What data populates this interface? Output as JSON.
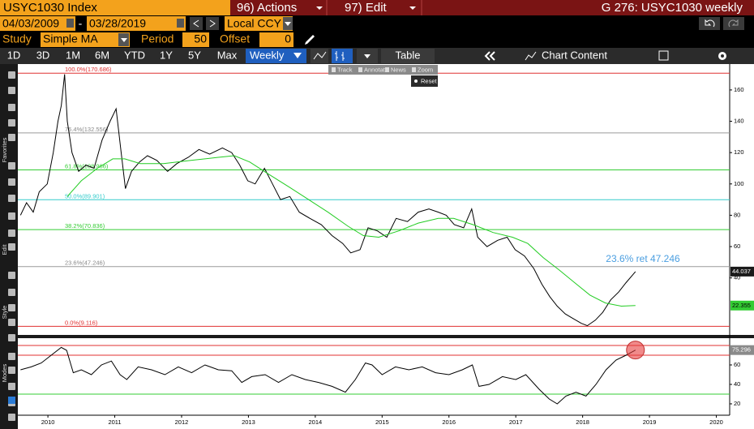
{
  "header": {
    "ticker": "USYC1030 Index",
    "actions": "96) Actions",
    "edit": "97) Edit",
    "title": "G 276: USYC1030 weekly"
  },
  "dates": {
    "start": "04/03/2009",
    "separator": "-",
    "end": "03/28/2019",
    "currency": "Local CCY"
  },
  "study": {
    "label": "Study",
    "name": "Simple MA",
    "period_label": "Period",
    "period": 50,
    "offset_label": "Offset",
    "offset": 0
  },
  "toolbar": {
    "ranges": [
      "1D",
      "3D",
      "1M",
      "6M",
      "YTD",
      "1Y",
      "5Y",
      "Max"
    ],
    "frequency": "Weekly",
    "table": "Table",
    "chart_content": "Chart Content"
  },
  "popup": {
    "items": [
      "Track",
      "Annotate",
      "News",
      "Zoom"
    ],
    "reset": "Reset"
  },
  "sidebar": {
    "favorites": "Favorites",
    "edit": "Edit",
    "style": "Style",
    "modes": "Modes"
  },
  "chart_data": [
    {
      "type": "line",
      "xlim": [
        2009.55,
        2020.2
      ],
      "ylim": [
        3.6,
        176
      ],
      "yticks": [
        40,
        60,
        80,
        100,
        120,
        140,
        160
      ],
      "series": [
        {
          "color": "#000000",
          "x": [
            2009.59,
            2009.68,
            2009.78,
            2009.87,
            2009.99,
            2010.08,
            2010.15,
            2010.2,
            2010.25,
            2010.29,
            2010.36,
            2010.46,
            2010.57,
            2010.69,
            2010.81,
            2010.93,
            2011.02,
            2011.09,
            2011.16,
            2011.25,
            2011.37,
            2011.49,
            2011.63,
            2011.79,
            2011.93,
            2012.1,
            2012.26,
            2012.42,
            2012.61,
            2012.75,
            2012.87,
            2012.99,
            2013.1,
            2013.24,
            2013.36,
            2013.48,
            2013.62,
            2013.76,
            2013.92,
            2014.09,
            2014.25,
            2014.41,
            2014.53,
            2014.67,
            2014.79,
            2014.93,
            2015.07,
            2015.21,
            2015.38,
            2015.54,
            2015.7,
            2015.84,
            2015.96,
            2016.08,
            2016.22,
            2016.34,
            2016.43,
            2016.57,
            2016.73,
            2016.87,
            2016.99,
            2017.13,
            2017.27,
            2017.39,
            2017.51,
            2017.62,
            2017.74,
            2017.86,
            2017.98,
            2018.07,
            2018.19,
            2018.3,
            2018.42,
            2018.54,
            2018.65,
            2018.75,
            2018.79
          ],
          "values": [
            80,
            88,
            82,
            95,
            100,
            120,
            140,
            150,
            170,
            140,
            120,
            108,
            112,
            110,
            128,
            140,
            148,
            122,
            97,
            108,
            114,
            118,
            115,
            108,
            113,
            117,
            122,
            119,
            123,
            120,
            112,
            102,
            100,
            110,
            100,
            90,
            92,
            82,
            78,
            74,
            67,
            62,
            56,
            58,
            72,
            70,
            66,
            78,
            76,
            82,
            84,
            82,
            80,
            74,
            72,
            84,
            66,
            60,
            64,
            66,
            58,
            54,
            46,
            36,
            28,
            22,
            17,
            14,
            11,
            9.5,
            13,
            18,
            26,
            31,
            37,
            42,
            44.037
          ],
          "tag_color": "#1a1a1a"
        },
        {
          "color": "#22cc22",
          "x": [
            2010.29,
            2010.5,
            2010.74,
            2010.97,
            2011.15,
            2011.38,
            2011.73,
            2012.14,
            2012.55,
            2012.79,
            2013.02,
            2013.31,
            2013.61,
            2013.9,
            2014.19,
            2014.49,
            2014.72,
            2014.95,
            2015.25,
            2015.54,
            2015.84,
            2016.07,
            2016.36,
            2016.66,
            2016.95,
            2017.18,
            2017.41,
            2017.65,
            2017.88,
            2018.11,
            2018.34,
            2018.58,
            2018.79
          ],
          "values": [
            92,
            102,
            110,
            116,
            116,
            113,
            113,
            115,
            117,
            118,
            114,
            106,
            98,
            90,
            82,
            73,
            67,
            66,
            70,
            75,
            78,
            78,
            74,
            69,
            66,
            62,
            53,
            45,
            37,
            29,
            24,
            22,
            22.355
          ],
          "tag_color": "#33cc33"
        }
      ],
      "levels": [
        {
          "value": 170.686,
          "label": "100.0%(170.686)",
          "color": "#e03030"
        },
        {
          "value": 132.556,
          "label": "76.4%(132.556)",
          "color": "#9a9a9a"
        },
        {
          "value": 108.966,
          "label": "61.8%(108.966)",
          "color": "#33cc33"
        },
        {
          "value": 89.901,
          "label": "50.0%(89.901)",
          "color": "#33cccc"
        },
        {
          "value": 70.836,
          "label": "38.2%(70.836)",
          "color": "#33cc33"
        },
        {
          "value": 47.246,
          "label": "23.6%(47.246)",
          "color": "#9a9a9a"
        },
        {
          "value": 9.116,
          "label": "0.0%(9.116)",
          "color": "#e03030"
        }
      ],
      "annotation": "23.6% ret 47.246"
    },
    {
      "type": "line",
      "xlim": [
        2009.55,
        2020.2
      ],
      "ylim": [
        8.3,
        86.7
      ],
      "yticks": [
        20,
        40,
        60
      ],
      "xticks": [
        2010,
        2011,
        2012,
        2013,
        2014,
        2015,
        2016,
        2017,
        2018,
        2019,
        2020
      ],
      "series": [
        {
          "color": "#000000",
          "x": [
            2009.59,
            2009.75,
            2009.9,
            2010.05,
            2010.2,
            2010.28,
            2010.38,
            2010.5,
            2010.65,
            2010.8,
            2010.95,
            2011.08,
            2011.18,
            2011.35,
            2011.55,
            2011.75,
            2011.95,
            2012.15,
            2012.35,
            2012.55,
            2012.75,
            2012.9,
            2013.05,
            2013.25,
            2013.45,
            2013.65,
            2013.85,
            2014.05,
            2014.25,
            2014.45,
            2014.6,
            2014.75,
            2014.85,
            2015.0,
            2015.2,
            2015.4,
            2015.6,
            2015.8,
            2016.0,
            2016.2,
            2016.35,
            2016.45,
            2016.6,
            2016.8,
            2017.0,
            2017.15,
            2017.35,
            2017.5,
            2017.62,
            2017.75,
            2017.9,
            2018.05,
            2018.2,
            2018.35,
            2018.5,
            2018.65,
            2018.79
          ],
          "values": [
            55,
            58,
            62,
            70,
            78,
            75,
            52,
            55,
            50,
            60,
            64,
            50,
            45,
            58,
            55,
            50,
            58,
            52,
            60,
            55,
            54,
            42,
            48,
            50,
            42,
            50,
            45,
            42,
            38,
            32,
            45,
            62,
            60,
            50,
            58,
            55,
            58,
            52,
            50,
            55,
            60,
            38,
            40,
            48,
            45,
            50,
            35,
            25,
            20,
            28,
            32,
            28,
            40,
            55,
            65,
            70,
            75.296
          ],
          "tag_color": "#8a8a8a"
        }
      ],
      "levels": [
        {
          "value": 80,
          "color": "#e03030"
        },
        {
          "value": 70,
          "color": "#e03030"
        },
        {
          "value": 30,
          "color": "#33cc33"
        }
      ]
    }
  ]
}
